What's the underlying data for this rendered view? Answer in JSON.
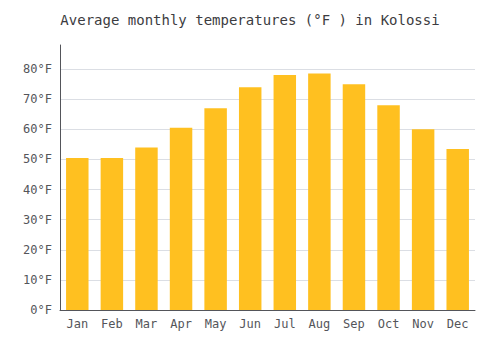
{
  "chart_data": {
    "type": "bar",
    "title": "Average monthly temperatures (°F ) in Kolossi",
    "categories": [
      "Jan",
      "Feb",
      "Mar",
      "Apr",
      "May",
      "Jun",
      "Jul",
      "Aug",
      "Sep",
      "Oct",
      "Nov",
      "Dec"
    ],
    "values": [
      50.5,
      50.5,
      54.0,
      60.5,
      67.0,
      74.0,
      78.0,
      78.5,
      75.0,
      68.0,
      60.0,
      53.5
    ],
    "color": "#FFC020",
    "ylim": [
      0,
      88
    ],
    "yticks": [
      {
        "value": 0,
        "label": "0°F"
      },
      {
        "value": 10,
        "label": "10°F"
      },
      {
        "value": 20,
        "label": "20°F"
      },
      {
        "value": 30,
        "label": "30°F"
      },
      {
        "value": 40,
        "label": "40°F"
      },
      {
        "value": 50,
        "label": "50°F"
      },
      {
        "value": 60,
        "label": "60°F"
      },
      {
        "value": 70,
        "label": "70°F"
      },
      {
        "value": 80,
        "label": "80°F"
      }
    ],
    "grid": true
  }
}
